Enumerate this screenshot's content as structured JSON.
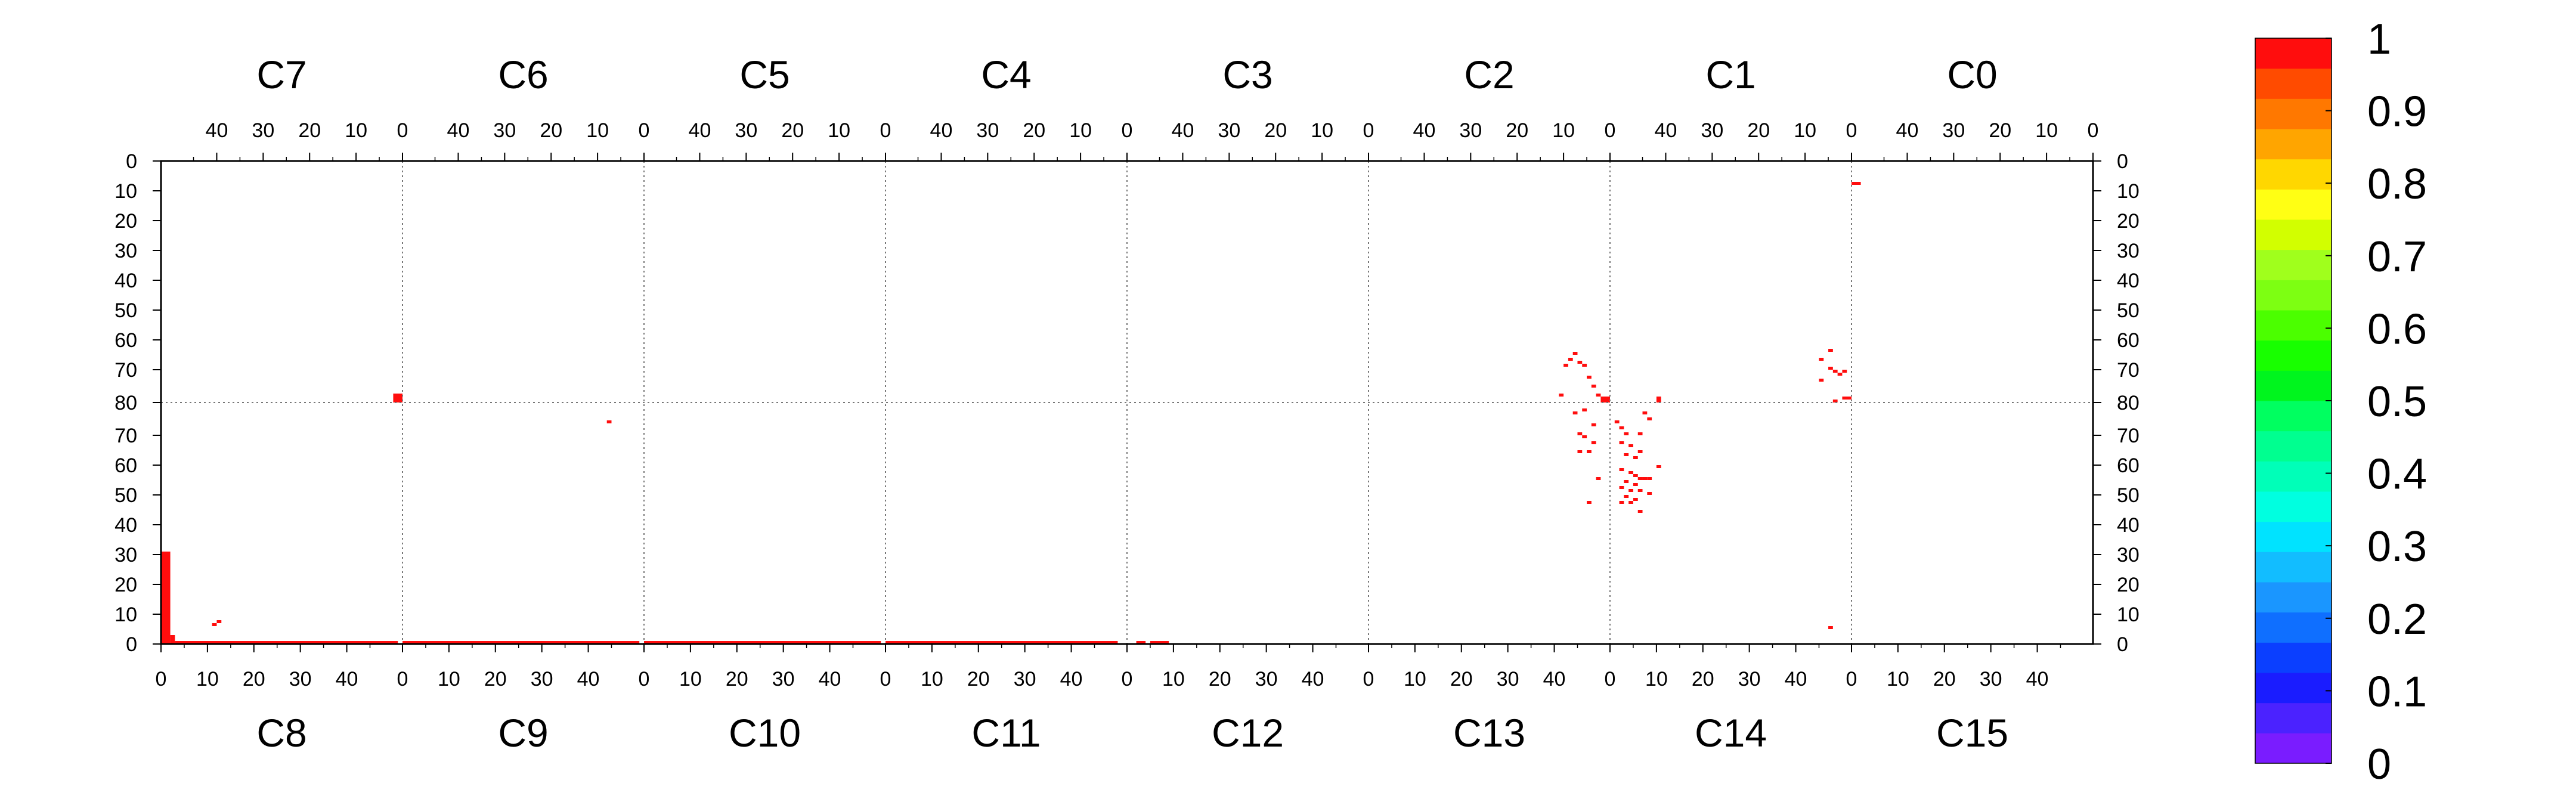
{
  "chart_data": {
    "type": "heatmap",
    "title": "",
    "xlabel": "",
    "ylabel": "",
    "top_chips": [
      "C7",
      "C6",
      "C5",
      "C4",
      "C3",
      "C2",
      "C1",
      "C0"
    ],
    "bottom_chips": [
      "C8",
      "C9",
      "C10",
      "C11",
      "C12",
      "C13",
      "C14",
      "C15"
    ],
    "top_tick_labels": [
      "40",
      "30",
      "20",
      "10",
      "0"
    ],
    "bottom_tick_labels": [
      "0",
      "10",
      "20",
      "30",
      "40"
    ],
    "y_tick_labels": [
      "0",
      "10",
      "20",
      "30",
      "40",
      "50",
      "60",
      "70",
      "80",
      "70",
      "60",
      "50",
      "40",
      "30",
      "20",
      "10",
      "0"
    ],
    "zlim": [
      0,
      1
    ],
    "colorbar_ticks": [
      "0",
      "0.1",
      "0.2",
      "0.3",
      "0.4",
      "0.5",
      "0.6",
      "0.7",
      "0.8",
      "0.9",
      "1"
    ],
    "colorbar_colors": [
      "#7a1cff",
      "#4b22ff",
      "#1a1cff",
      "#0b3fff",
      "#0f6fff",
      "#1a96ff",
      "#12bdff",
      "#00e3ff",
      "#00ffe0",
      "#00ffb8",
      "#00ff90",
      "#00ff60",
      "#00f51e",
      "#18ff00",
      "#4bff00",
      "#7dff12",
      "#a0ff1c",
      "#d2ff00",
      "#ffff14",
      "#ffd700",
      "#ffa500",
      "#ff7800",
      "#ff4b00",
      "#ff0d0d"
    ],
    "hit_color": "#ff0d0d",
    "grid_lines": "dotted",
    "colorbar_position": "right",
    "hits": [
      {
        "half": "top",
        "chip": 0,
        "col": 0,
        "row": 78,
        "value": 1,
        "w": 2,
        "h": 3
      },
      {
        "half": "top",
        "chip": 5,
        "col": 0,
        "row": 79,
        "value": 1,
        "w": 2,
        "h": 2
      },
      {
        "half": "top",
        "chip": 6,
        "col": 41,
        "row": 79,
        "value": 1,
        "w": 1,
        "h": 2
      },
      {
        "half": "top",
        "chip": 7,
        "col": 50,
        "row": 7,
        "value": 1,
        "w": 2,
        "h": 1
      },
      {
        "half": "top",
        "chip": 6,
        "col": 0,
        "row": 79,
        "value": 1,
        "w": 2,
        "h": 1
      },
      {
        "half": "top",
        "chip": 6,
        "col": 4,
        "row": 63,
        "value": 1
      },
      {
        "half": "top",
        "chip": 5,
        "col": 7,
        "row": 64,
        "value": 1
      },
      {
        "half": "top",
        "chip": 6,
        "col": 6,
        "row": 66,
        "value": 1
      },
      {
        "half": "top",
        "chip": 5,
        "col": 8,
        "row": 66,
        "value": 1
      },
      {
        "half": "top",
        "chip": 5,
        "col": 6,
        "row": 67,
        "value": 1
      },
      {
        "half": "top",
        "chip": 5,
        "col": 5,
        "row": 68,
        "value": 1
      },
      {
        "half": "top",
        "chip": 5,
        "col": 9,
        "row": 68,
        "value": 1
      },
      {
        "half": "top",
        "chip": 6,
        "col": 1,
        "row": 70,
        "value": 1
      },
      {
        "half": "top",
        "chip": 6,
        "col": 3,
        "row": 70,
        "value": 1
      },
      {
        "half": "top",
        "chip": 6,
        "col": 4,
        "row": 69,
        "value": 1
      },
      {
        "half": "top",
        "chip": 6,
        "col": 2,
        "row": 71,
        "value": 1
      },
      {
        "half": "top",
        "chip": 5,
        "col": 4,
        "row": 72,
        "value": 1
      },
      {
        "half": "top",
        "chip": 5,
        "col": 3,
        "row": 75,
        "value": 1
      },
      {
        "half": "top",
        "chip": 6,
        "col": 6,
        "row": 73,
        "value": 1
      },
      {
        "half": "top",
        "chip": 5,
        "col": 2,
        "row": 78,
        "value": 1
      },
      {
        "half": "top",
        "chip": 5,
        "col": 10,
        "row": 78,
        "value": 1
      },
      {
        "half": "top",
        "chip": 6,
        "col": 3,
        "row": 80,
        "value": 1
      },
      {
        "half": "bottom",
        "chip": 0,
        "col": 0,
        "row": 0,
        "value": 1,
        "w": 2,
        "h": 31
      },
      {
        "half": "bottom",
        "chip": 0,
        "col": 2,
        "row": 0,
        "value": 1,
        "w": 1,
        "h": 3
      },
      {
        "half": "bottom",
        "chip": 0,
        "col": 3,
        "row": 0,
        "value": 1,
        "w": 48,
        "h": 1
      },
      {
        "half": "bottom",
        "chip": 1,
        "col": 0,
        "row": 0,
        "value": 1,
        "w": 51,
        "h": 1
      },
      {
        "half": "bottom",
        "chip": 2,
        "col": 0,
        "row": 0,
        "value": 1,
        "w": 51,
        "h": 1
      },
      {
        "half": "bottom",
        "chip": 3,
        "col": 0,
        "row": 0,
        "value": 1,
        "w": 50,
        "h": 1
      },
      {
        "half": "bottom",
        "chip": 4,
        "col": 2,
        "row": 0,
        "value": 1,
        "w": 2,
        "h": 1
      },
      {
        "half": "bottom",
        "chip": 4,
        "col": 5,
        "row": 0,
        "value": 1,
        "w": 4,
        "h": 1
      },
      {
        "half": "bottom",
        "chip": 0,
        "col": 11,
        "row": 6,
        "value": 1
      },
      {
        "half": "bottom",
        "chip": 0,
        "col": 12,
        "row": 7,
        "value": 1
      },
      {
        "half": "bottom",
        "chip": 1,
        "col": 44,
        "row": 74,
        "value": 1
      },
      {
        "half": "bottom",
        "chip": 6,
        "col": 47,
        "row": 5,
        "value": 1
      },
      {
        "half": "bottom",
        "chip": 5,
        "col": 47,
        "row": 47,
        "value": 1
      },
      {
        "half": "bottom",
        "chip": 5,
        "col": 45,
        "row": 64,
        "value": 1
      },
      {
        "half": "bottom",
        "chip": 5,
        "col": 46,
        "row": 69,
        "value": 1
      },
      {
        "half": "bottom",
        "chip": 5,
        "col": 45,
        "row": 70,
        "value": 1
      },
      {
        "half": "bottom",
        "chip": 5,
        "col": 47,
        "row": 64,
        "value": 1
      },
      {
        "half": "bottom",
        "chip": 5,
        "col": 48,
        "row": 73,
        "value": 1
      },
      {
        "half": "bottom",
        "chip": 5,
        "col": 44,
        "row": 77,
        "value": 1
      },
      {
        "half": "bottom",
        "chip": 5,
        "col": 46,
        "row": 78,
        "value": 1
      },
      {
        "half": "bottom",
        "chip": 5,
        "col": 49,
        "row": 55,
        "value": 1
      },
      {
        "half": "bottom",
        "chip": 5,
        "col": 48,
        "row": 67,
        "value": 1
      },
      {
        "half": "bottom",
        "chip": 6,
        "col": 1,
        "row": 74,
        "value": 1
      },
      {
        "half": "bottom",
        "chip": 6,
        "col": 2,
        "row": 72,
        "value": 1
      },
      {
        "half": "bottom",
        "chip": 6,
        "col": 3,
        "row": 70,
        "value": 1
      },
      {
        "half": "bottom",
        "chip": 6,
        "col": 2,
        "row": 67,
        "value": 1
      },
      {
        "half": "bottom",
        "chip": 6,
        "col": 4,
        "row": 66,
        "value": 1
      },
      {
        "half": "bottom",
        "chip": 6,
        "col": 3,
        "row": 63,
        "value": 1
      },
      {
        "half": "bottom",
        "chip": 6,
        "col": 5,
        "row": 62,
        "value": 1
      },
      {
        "half": "bottom",
        "chip": 6,
        "col": 6,
        "row": 64,
        "value": 1
      },
      {
        "half": "bottom",
        "chip": 6,
        "col": 6,
        "row": 70,
        "value": 1
      },
      {
        "half": "bottom",
        "chip": 6,
        "col": 7,
        "row": 77,
        "value": 1
      },
      {
        "half": "bottom",
        "chip": 6,
        "col": 8,
        "row": 75,
        "value": 1
      },
      {
        "half": "bottom",
        "chip": 6,
        "col": 10,
        "row": 59,
        "value": 1
      },
      {
        "half": "bottom",
        "chip": 6,
        "col": 2,
        "row": 58,
        "value": 1
      },
      {
        "half": "bottom",
        "chip": 6,
        "col": 4,
        "row": 57,
        "value": 1
      },
      {
        "half": "bottom",
        "chip": 6,
        "col": 5,
        "row": 56,
        "value": 1
      },
      {
        "half": "bottom",
        "chip": 6,
        "col": 6,
        "row": 55,
        "value": 1
      },
      {
        "half": "bottom",
        "chip": 6,
        "col": 7,
        "row": 55,
        "value": 1
      },
      {
        "half": "bottom",
        "chip": 6,
        "col": 8,
        "row": 55,
        "value": 1
      },
      {
        "half": "bottom",
        "chip": 6,
        "col": 3,
        "row": 54,
        "value": 1
      },
      {
        "half": "bottom",
        "chip": 6,
        "col": 5,
        "row": 53,
        "value": 1
      },
      {
        "half": "bottom",
        "chip": 6,
        "col": 2,
        "row": 52,
        "value": 1
      },
      {
        "half": "bottom",
        "chip": 6,
        "col": 4,
        "row": 51,
        "value": 1
      },
      {
        "half": "bottom",
        "chip": 6,
        "col": 6,
        "row": 51,
        "value": 1
      },
      {
        "half": "bottom",
        "chip": 6,
        "col": 8,
        "row": 50,
        "value": 1
      },
      {
        "half": "bottom",
        "chip": 6,
        "col": 3,
        "row": 49,
        "value": 1
      },
      {
        "half": "bottom",
        "chip": 6,
        "col": 5,
        "row": 48,
        "value": 1
      },
      {
        "half": "bottom",
        "chip": 6,
        "col": 2,
        "row": 47,
        "value": 1
      },
      {
        "half": "bottom",
        "chip": 6,
        "col": 4,
        "row": 47,
        "value": 1
      },
      {
        "half": "bottom",
        "chip": 6,
        "col": 6,
        "row": 44,
        "value": 1
      }
    ]
  }
}
